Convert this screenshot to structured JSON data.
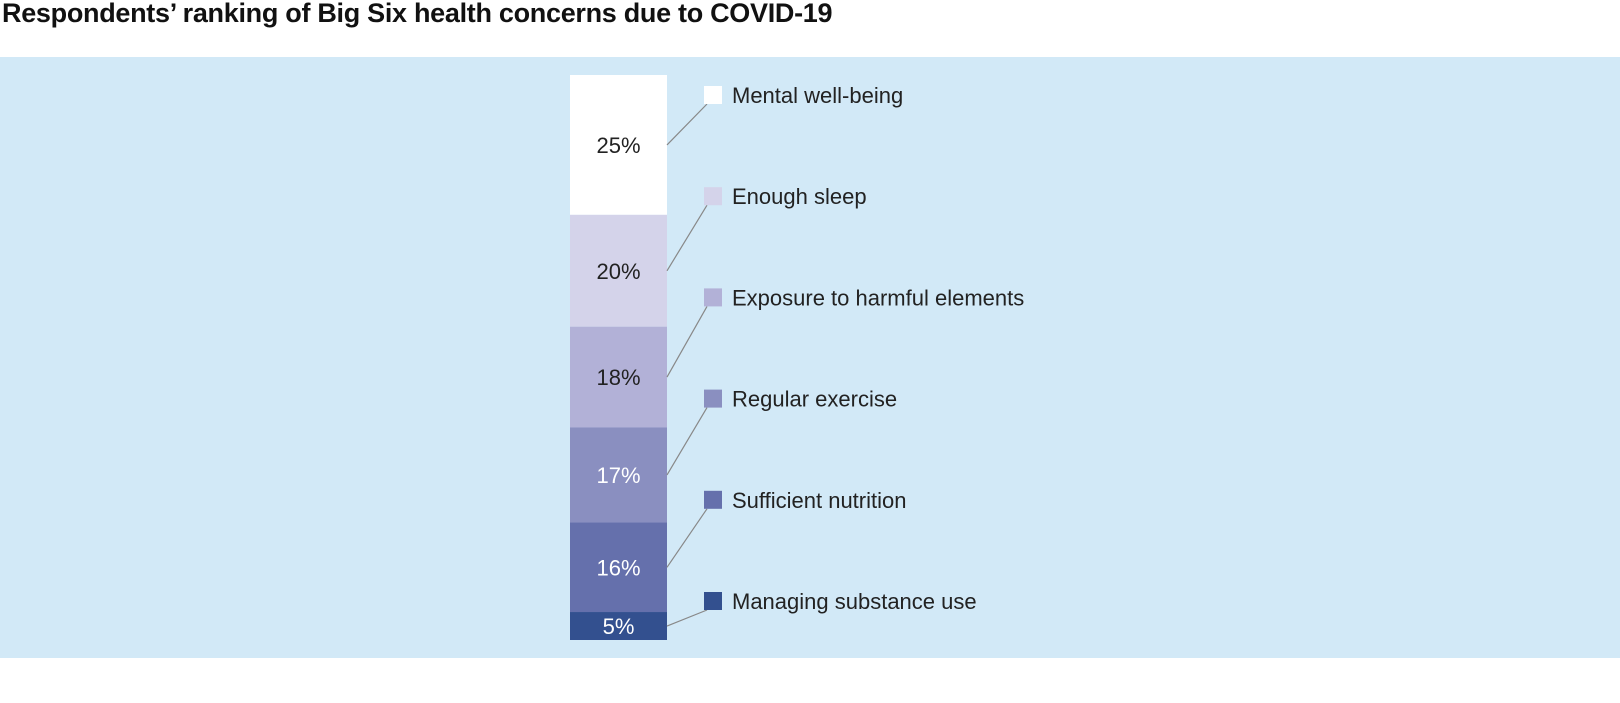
{
  "chart_data": {
    "type": "bar",
    "stacked": true,
    "title": "Respondents’ ranking of Big Six health concerns due to COVID-19",
    "categories": [
      "Mental well-being",
      "Enough sleep",
      "Exposure to harmful elements",
      "Regular exercise",
      "Sufficient nutrition",
      "Managing substance use"
    ],
    "values": [
      25,
      20,
      18,
      17,
      16,
      5
    ],
    "labels": [
      "25%",
      "20%",
      "18%",
      "17%",
      "16%",
      "5%"
    ],
    "colors": [
      "#ffffff",
      "#d4d3ea",
      "#b2b1d7",
      "#8a8fc0",
      "#6570ac",
      "#33508f"
    ],
    "label_colors": [
      "#222222",
      "#222222",
      "#222222",
      "#ffffff",
      "#ffffff",
      "#ffffff"
    ],
    "legend": "right",
    "background": "#d2e9f7"
  }
}
